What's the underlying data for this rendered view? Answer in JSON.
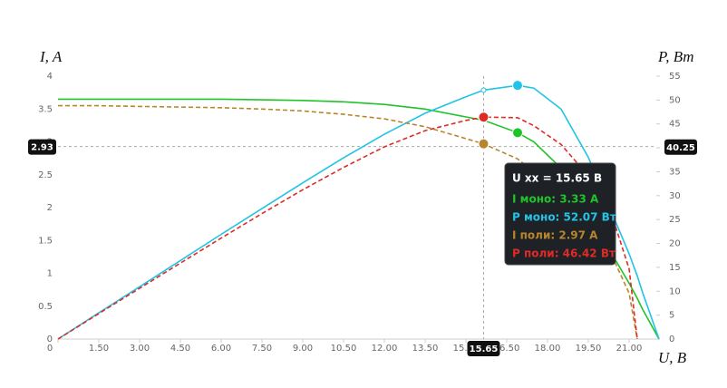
{
  "chart_data": {
    "type": "line",
    "xlabel": "U, В",
    "ylabel": "I, A",
    "y2label": "P, Вт",
    "x": [
      0,
      1.5,
      3,
      4.5,
      6,
      7.5,
      9,
      10.5,
      12,
      13.5,
      15,
      15.65,
      16.9,
      17.5,
      18.5,
      19.5,
      20.5,
      21,
      21.3,
      21.5,
      22.1
    ],
    "series": [
      {
        "name": "I моно",
        "color": "#1fc42a",
        "dash": false,
        "axis": "y",
        "dot_at": 16.9,
        "values": [
          3.65,
          3.65,
          3.65,
          3.65,
          3.65,
          3.64,
          3.63,
          3.61,
          3.57,
          3.5,
          3.38,
          3.33,
          3.14,
          3.0,
          2.6,
          1.95,
          1.2,
          0.85,
          0.62,
          0.45,
          0
        ]
      },
      {
        "name": "P моно",
        "color": "#21c3e6",
        "dash": false,
        "axis": "y2",
        "dot_at": 16.9,
        "values": [
          0,
          5.48,
          10.95,
          16.43,
          21.9,
          27.3,
          32.67,
          37.91,
          42.84,
          47.25,
          50.7,
          52.07,
          53.07,
          52.5,
          48.1,
          38.03,
          24.6,
          17.85,
          13.21,
          9.68,
          0
        ]
      },
      {
        "name": "I поли",
        "color": "#b8862a",
        "dash": true,
        "axis": "y",
        "dot_at": 15.65,
        "values": [
          3.55,
          3.55,
          3.54,
          3.53,
          3.52,
          3.5,
          3.47,
          3.42,
          3.35,
          3.23,
          3.05,
          2.97,
          2.74,
          2.55,
          2.2,
          1.75,
          1.15,
          0.7,
          0,
          null,
          null
        ]
      },
      {
        "name": "P поли",
        "color": "#e02a25",
        "dash": true,
        "axis": "y2",
        "dot_at": 15.65,
        "values": [
          0,
          5.33,
          10.62,
          15.89,
          21.12,
          26.25,
          31.23,
          35.91,
          40.2,
          43.61,
          45.75,
          46.42,
          46.31,
          44.63,
          40.7,
          34.13,
          23.58,
          14.7,
          0,
          null,
          null
        ]
      }
    ],
    "xlim": [
      0,
      22
    ],
    "xticks": [
      0,
      {
        "value": 1.5,
        "label": "1.50"
      },
      {
        "value": 3,
        "label": "3.00"
      },
      {
        "value": 4.5,
        "label": "4.50"
      },
      {
        "value": 6,
        "label": "6.00"
      },
      {
        "value": 7.5,
        "label": "7.50"
      },
      {
        "value": 9,
        "label": "9.00"
      },
      {
        "value": 10.5,
        "label": "10.50"
      },
      {
        "value": 12,
        "label": "12.00"
      },
      {
        "value": 13.5,
        "label": "13.50"
      },
      {
        "value": 15,
        "label": "15.00"
      },
      {
        "value": 16.5,
        "label": "16.50"
      },
      {
        "value": 18,
        "label": "18.00"
      },
      {
        "value": 19.5,
        "label": "19.50"
      },
      {
        "value": 21,
        "label": "21.00"
      }
    ],
    "ylim": [
      0,
      4
    ],
    "yticks": [
      0,
      0.5,
      1,
      1.5,
      2,
      2.5,
      3,
      3.5,
      4
    ],
    "y2lim": [
      0,
      55
    ],
    "y2ticks": [
      0,
      5,
      10,
      15,
      20,
      25,
      30,
      35,
      40,
      45,
      50,
      55
    ],
    "crosshair": {
      "x": 15.65,
      "y": 2.93,
      "y2": 40.25
    },
    "tooltip": {
      "title": "U xx = 15.65 В",
      "items": [
        {
          "text": "I моно: 3.33 А",
          "color": "#1fc42a"
        },
        {
          "text": "P моно: 52.07 Вт",
          "color": "#21c3e6"
        },
        {
          "text": "I поли: 2.97 А",
          "color": "#b8862a"
        },
        {
          "text": "P поли: 46.42 Вт",
          "color": "#e02a25"
        }
      ]
    }
  }
}
